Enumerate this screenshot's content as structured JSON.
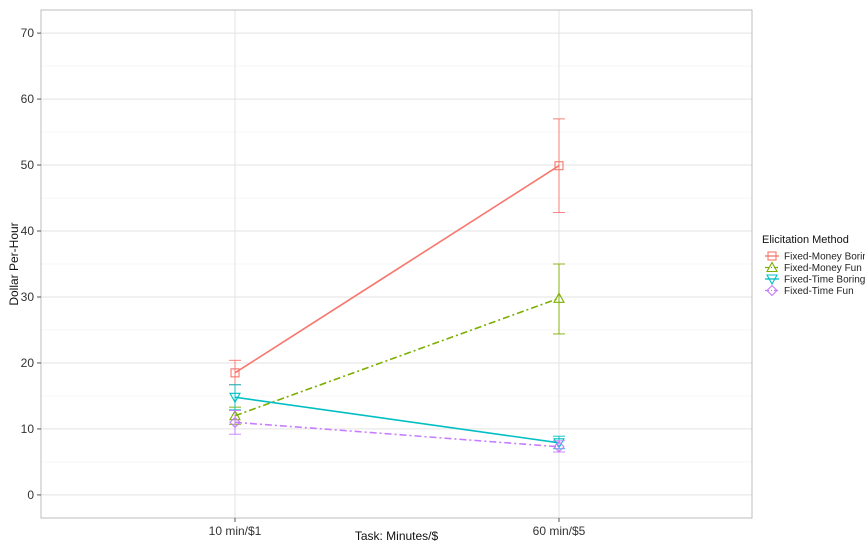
{
  "chart_data": {
    "type": "line",
    "title": "",
    "xlabel": "Task: Minutes/$",
    "ylabel": "Dollar Per-Hour",
    "categories": [
      "10 min/$1",
      "60 min/$5"
    ],
    "ylim": [
      -3.5,
      73.5
    ],
    "yticks": [
      0,
      10,
      20,
      30,
      40,
      50,
      60,
      70
    ],
    "grid": true,
    "legend": {
      "title": "Elicitation Method",
      "position": "right"
    },
    "series": [
      {
        "name": "Fixed-Money Boring",
        "values": [
          18.5,
          49.9
        ],
        "err_low": [
          16.7,
          42.8
        ],
        "err_high": [
          20.4,
          57.0
        ],
        "color": "#f8766d",
        "marker": "square",
        "dash": "solid"
      },
      {
        "name": "Fixed-Money Fun",
        "values": [
          12.0,
          29.8
        ],
        "err_low": [
          10.7,
          24.4
        ],
        "err_high": [
          13.3,
          35.0
        ],
        "color": "#7cae00",
        "marker": "triangle-up",
        "dash": "dashdot"
      },
      {
        "name": "Fixed-Time Boring",
        "values": [
          14.8,
          7.9
        ],
        "err_low": [
          12.9,
          7.0
        ],
        "err_high": [
          16.7,
          8.9
        ],
        "color": "#00bfc4",
        "marker": "triangle-down",
        "dash": "solid"
      },
      {
        "name": "Fixed-Time Fun",
        "values": [
          11.0,
          7.3
        ],
        "err_low": [
          9.2,
          6.5
        ],
        "err_high": [
          12.8,
          8.2
        ],
        "color": "#c77cff",
        "marker": "diamond",
        "dash": "dashdot"
      }
    ]
  }
}
